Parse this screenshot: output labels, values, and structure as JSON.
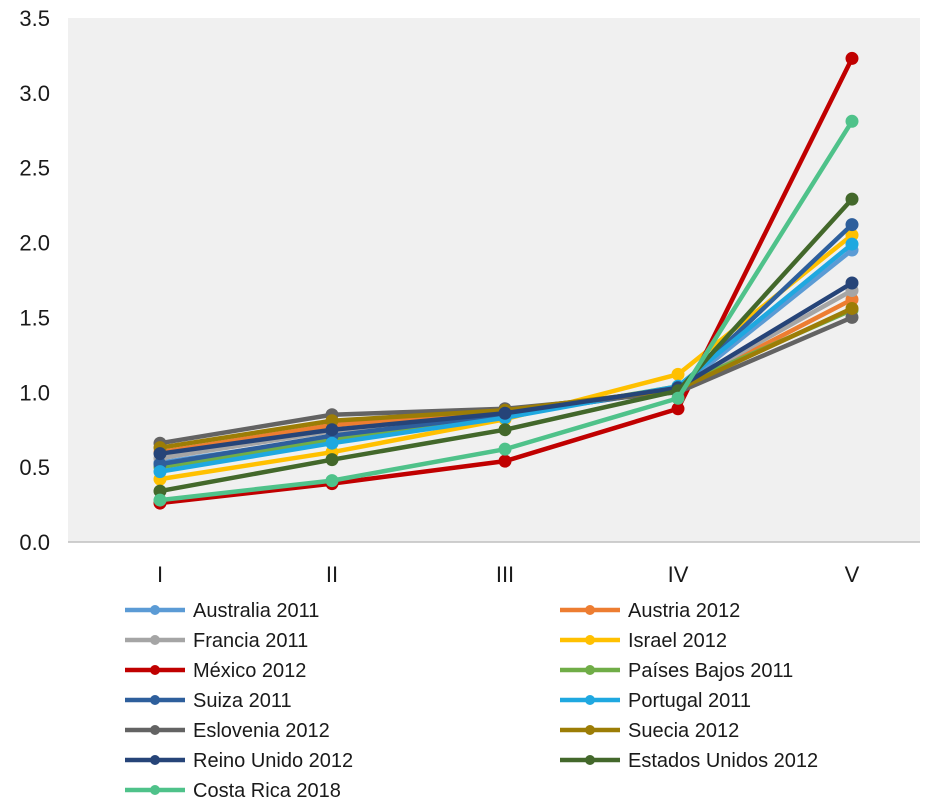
{
  "chart_data": {
    "type": "line",
    "title": "",
    "xlabel": "",
    "ylabel": "",
    "categories": [
      "I",
      "II",
      "III",
      "IV",
      "V"
    ],
    "ylim": [
      0,
      3.5
    ],
    "yticks": [
      "0.0",
      "0.5",
      "1.0",
      "1.5",
      "2.0",
      "2.5",
      "3.0",
      "3.5"
    ],
    "grid": false,
    "legend_position": "bottom",
    "series": [
      {
        "name": "Australia 2011",
        "color": "#5b9bd5",
        "values": [
          0.53,
          0.7,
          0.85,
          1.02,
          1.95
        ]
      },
      {
        "name": "Austria 2012",
        "color": "#ed7d31",
        "values": [
          0.6,
          0.78,
          0.88,
          1.02,
          1.62
        ]
      },
      {
        "name": "Francia 2011",
        "color": "#a5a5a5",
        "values": [
          0.56,
          0.74,
          0.86,
          1.03,
          1.68
        ]
      },
      {
        "name": "Israel 2012",
        "color": "#ffc000",
        "values": [
          0.42,
          0.6,
          0.82,
          1.12,
          2.05
        ]
      },
      {
        "name": "México 2012",
        "color": "#c00000",
        "values": [
          0.26,
          0.39,
          0.54,
          0.89,
          3.23
        ]
      },
      {
        "name": "Países Bajos 2011",
        "color": "#70ad47",
        "values": [
          0.5,
          0.68,
          0.84,
          1.04,
          1.55
        ]
      },
      {
        "name": "Suiza 2011",
        "color": "#2e5f9c",
        "values": [
          0.52,
          0.71,
          0.85,
          1.02,
          2.12
        ]
      },
      {
        "name": "Portugal 2011",
        "color": "#1fa8e0",
        "values": [
          0.47,
          0.66,
          0.83,
          1.04,
          1.99
        ]
      },
      {
        "name": "Eslovenia 2012",
        "color": "#636363",
        "values": [
          0.66,
          0.85,
          0.89,
          1.0,
          1.5
        ]
      },
      {
        "name": "Suecia 2012",
        "color": "#9c7d06",
        "values": [
          0.63,
          0.81,
          0.88,
          1.02,
          1.56
        ]
      },
      {
        "name": "Reino Unido 2012",
        "color": "#264478",
        "values": [
          0.59,
          0.75,
          0.86,
          1.03,
          1.73
        ]
      },
      {
        "name": "Estados Unidos 2012",
        "color": "#43682b",
        "values": [
          0.34,
          0.55,
          0.75,
          1.01,
          2.29
        ]
      },
      {
        "name": "Costa Rica 2018",
        "color": "#4fc28a",
        "values": [
          0.28,
          0.41,
          0.62,
          0.96,
          2.81
        ]
      }
    ]
  }
}
